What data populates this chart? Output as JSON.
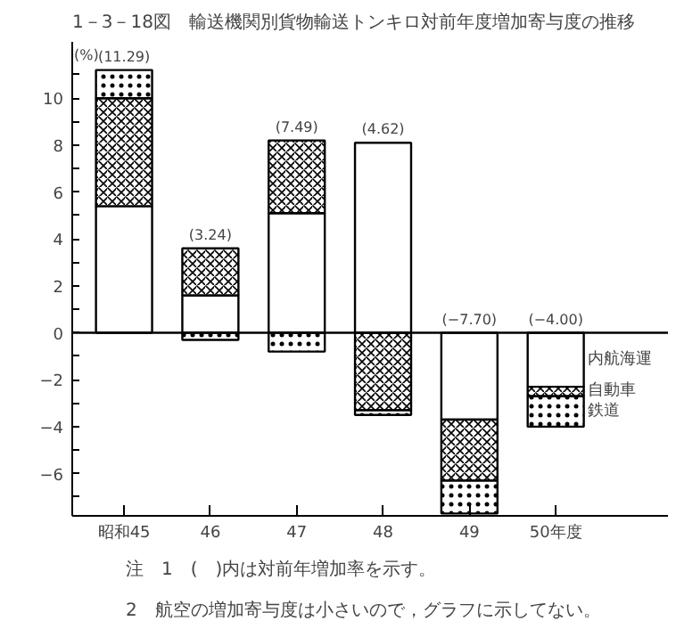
{
  "chart_data": {
    "type": "bar",
    "stacked": true,
    "title": "1－3－18図　輸送機関別貨物輸送トンキロ対前年度増加寄与度の推移",
    "ylabel": "(%)",
    "categories": [
      "昭和45",
      "46",
      "47",
      "48",
      "49",
      "50年度"
    ],
    "series": [
      {
        "name": "内航海運",
        "color": "#ffffff",
        "values": [
          5.4,
          1.6,
          5.1,
          8.1,
          -3.7,
          -2.3
        ]
      },
      {
        "name": "自動車",
        "color": "#ffffff",
        "values": [
          4.6,
          2.0,
          3.1,
          -3.3,
          -2.6,
          -0.4
        ]
      },
      {
        "name": "鉄道",
        "color": "#ffffff",
        "values": [
          1.2,
          -0.3,
          -0.8,
          -0.2,
          -1.4,
          -1.3
        ]
      }
    ],
    "ylim": [
      -7.8,
      12.4
    ],
    "yticks": [
      {
        "value": -7,
        "label": null
      },
      -6,
      {
        "value": -5,
        "label": null
      },
      -4,
      {
        "value": -3,
        "label": null
      },
      -2,
      {
        "value": -1,
        "label": null
      },
      0,
      {
        "value": 1,
        "label": null
      },
      2,
      {
        "value": 3,
        "label": null
      },
      4,
      {
        "value": 5,
        "label": null
      },
      6,
      {
        "value": 7,
        "label": null
      },
      8,
      {
        "value": 9,
        "label": null
      },
      10,
      {
        "value": 11,
        "label": null
      }
    ],
    "ref_lines": [
      {
        "axis": "y",
        "value": 0,
        "label": null
      }
    ],
    "grid": false,
    "annotations": [
      {
        "text": "(11.29)",
        "x": "昭和45",
        "y": 11.2
      },
      {
        "text": "(3.24)",
        "x": "46",
        "y": 3.6
      },
      {
        "text": "(7.49)",
        "x": "47",
        "y": 8.2
      },
      {
        "text": "(4.62)",
        "x": "48",
        "y": 8.1
      },
      {
        "text": "(−7.70)",
        "x": "49",
        "y": 0
      },
      {
        "text": "(−4.00)",
        "x": "50年度",
        "y": 0
      },
      "注　1　(　)内は対前年増加率を示す。",
      "2　航空の増加寄与度は小さいので，グラフに示してない。"
    ]
  }
}
